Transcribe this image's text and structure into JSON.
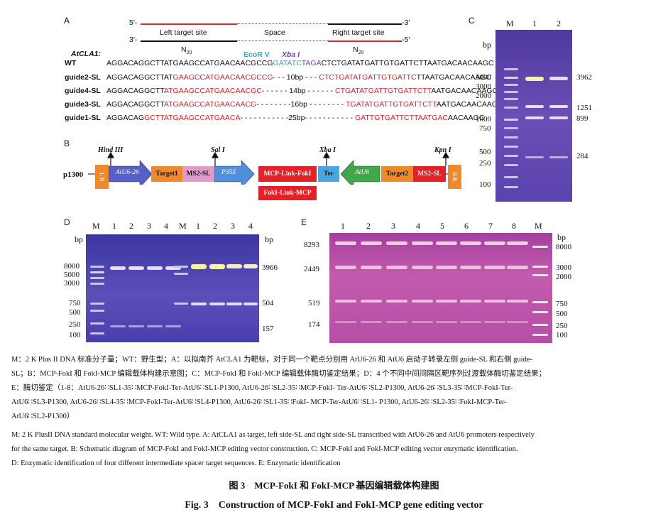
{
  "panelA": {
    "label": "A",
    "five_prime": "5′-",
    "three_prime_end": "-3′",
    "three_prime": "3′-",
    "five_prime_end": "-5′",
    "left_site": "Left target site",
    "space": "Space",
    "right_site": "Right target site",
    "n20_left": "N",
    "n20_left_sub": "20",
    "n20_right": "N",
    "n20_right_sub": "20",
    "gene": "AtCLA1:",
    "ecor": "EcoR V",
    "xba": "Xba I",
    "rows": [
      {
        "name": "WT",
        "parts": [
          {
            "t": "AGGACAGGCTTATGAAGCCATGAACAACGCCG",
            "c": "blk"
          },
          {
            "t": "GATATC",
            "c": "cyan"
          },
          {
            "t": "TAGA",
            "c": "purple"
          },
          {
            "t": "CTCTGATATGATTGTGATTCTTAATGACAACAAGC",
            "c": "blk"
          }
        ]
      },
      {
        "name": "guide2-SL",
        "parts": [
          {
            "t": "AGGACAGGCTTAT",
            "c": "blk"
          },
          {
            "t": "GAAGCCATGAACAACGCCG",
            "c": "red"
          },
          {
            "t": "- - - 10bp - - - ",
            "c": "blk"
          },
          {
            "t": "CTCTGATATGATTGTGATTC",
            "c": "red"
          },
          {
            "t": "TTAATGACAACAAGC",
            "c": "blk"
          }
        ]
      },
      {
        "name": "guide4-SL",
        "parts": [
          {
            "t": "AGGACAGGCTT",
            "c": "blk"
          },
          {
            "t": "ATGAAGCCATGAACAACGC",
            "c": "red"
          },
          {
            "t": "- - - - - - 14bp - - - - - - ",
            "c": "blk"
          },
          {
            "t": "CTGATATGATTGTGATTCTT",
            "c": "red"
          },
          {
            "t": "AATGACAACAAGC",
            "c": "blk"
          }
        ]
      },
      {
        "name": "guide3-SL",
        "parts": [
          {
            "t": "AGGACAGGCTT",
            "c": "blk"
          },
          {
            "t": "ATGAAGCCATGAACAACG",
            "c": "red"
          },
          {
            "t": "- - - - - - - -16bp - - - - - - - - ",
            "c": "blk"
          },
          {
            "t": "TGATATGATTGTGATTCTT",
            "c": "red"
          },
          {
            "t": "AATGACAACAAGC",
            "c": "blk"
          }
        ]
      },
      {
        "name": "guide1-SL",
        "parts": [
          {
            "t": "AGGACAG",
            "c": "blk"
          },
          {
            "t": "GCTTATGAAGCCATGAACA",
            "c": "red"
          },
          {
            "t": "- - - - - - - - - - -25bp- - - - - - - - - - - ",
            "c": "blk"
          },
          {
            "t": "GATTGTGATTCTTAATGAC",
            "c": "red"
          },
          {
            "t": "AACAAGC",
            "c": "blk"
          }
        ]
      }
    ]
  },
  "panelB": {
    "label": "B",
    "name": "p1300",
    "hind": "Hind III",
    "sal": "Sal I",
    "xbaB": "Xba I",
    "kpn": "Kpn I",
    "lb": "L B",
    "rb": "R B",
    "atu626": "AtU6-26",
    "target1": "Target1",
    "ms2a": "MS2-SL",
    "p35s": "P35S",
    "mcp": "MCP-Link-FokI",
    "fokmcp": "FokI-Link-MCP",
    "ter": "Ter",
    "atu6": "AtU6",
    "target2": "Target2",
    "ms2b": "MS2-SL"
  },
  "panelC": {
    "label": "C",
    "lanes": [
      "M",
      "1",
      "2"
    ],
    "bp": "bp",
    "marker": [
      "5000",
      "3000",
      "2000",
      "1000",
      "750",
      "500",
      "250",
      "100"
    ],
    "sizes": [
      "3962",
      "1251",
      "899",
      "284"
    ]
  },
  "panelD": {
    "label": "D",
    "lanes": [
      "M",
      "1",
      "2",
      "3",
      "4",
      "M",
      "1",
      "2",
      "3",
      "4"
    ],
    "bp_left": "bp",
    "bp_right": "bp",
    "marker": [
      "8000",
      "5000",
      "3000",
      "750",
      "500",
      "250",
      "100"
    ],
    "sizes": [
      "3966",
      "504",
      "157"
    ]
  },
  "panelE": {
    "label": "E",
    "lanes": [
      "1",
      "2",
      "3",
      "4",
      "5",
      "6",
      "7",
      "8",
      "M"
    ],
    "bp": "bp",
    "sizes": [
      "8293",
      "2449",
      "519",
      "174"
    ],
    "marker": [
      "8000",
      "3000",
      "2000",
      "750",
      "500",
      "250",
      "100"
    ]
  },
  "caption_cn": [
    "M：2 K Plus II DNA 标准分子量；WT：野生型；A：以拟南芥 AtCLA1 为靶标，对于同一个靶点分别用 AtU6-26 和 AtU6 启动子转录左侧 guide-SL 和右侧 guide-",
    "SL；B：MCP-FokI 和 FokI-MCP 编辑载体构建示意图；C：MCP-FokI 和 FokI-MCP 编辑载体酶切鉴定结果；D：4 个不同中间间隔区靶序列过渡载体酶切鉴定结果；",
    "E：酶切鉴定（1-8：AtU6-26∷SL1-35∷MCP-FokI-Ter-AtU6∷SL1-P1300, AtU6-26∷SL2-35∷MCP-FokI- Ter-AtU6∷SL2-P1300, AtU6-26∷SL3-35∷MCP-FokI-Ter-",
    "AtU6∷SL3-P1300, AtU6-26∷SL4-35∷MCP-FokI-Ter-AtU6∷SL4-P1300, AtU6-26∷SL1-35∷FokI- MCP-Ter-AtU6∷SL1- P1300, AtU6-26∷SL2-35∷FokI-MCP-Ter-",
    "AtU6∷SL2-P1300）"
  ],
  "caption_en": [
    "M: 2 K PlusII DNA standard molecular weight. WT: Wild type. A: AtCLA1 as target, left side-SL and right side-SL transcribed with AtU6-26 and AtU6 promoters respectively",
    "for the same target. B: Schematic diagram of MCP-FokI and FokI-MCP editing vector construction. C: MCP-FokI and FokI-MCP editing vector enzymatic identification.",
    "D: Enzymatic identification of four different intermediate spacer target sequences. E: Enzymatic identification"
  ],
  "title_cn": "图 3　MCP-FokI 和 FokI-MCP 基因编辑载体构建图",
  "title_en": "Fig. 3　Construction of MCP-FokI and FokI-MCP gene editing vector",
  "colors": {
    "gel": "#6f4db0",
    "gel_e": "#b94aa6",
    "red": "#d6262b",
    "cyan": "#2aa8d8",
    "purple": "#7a3fb0"
  }
}
